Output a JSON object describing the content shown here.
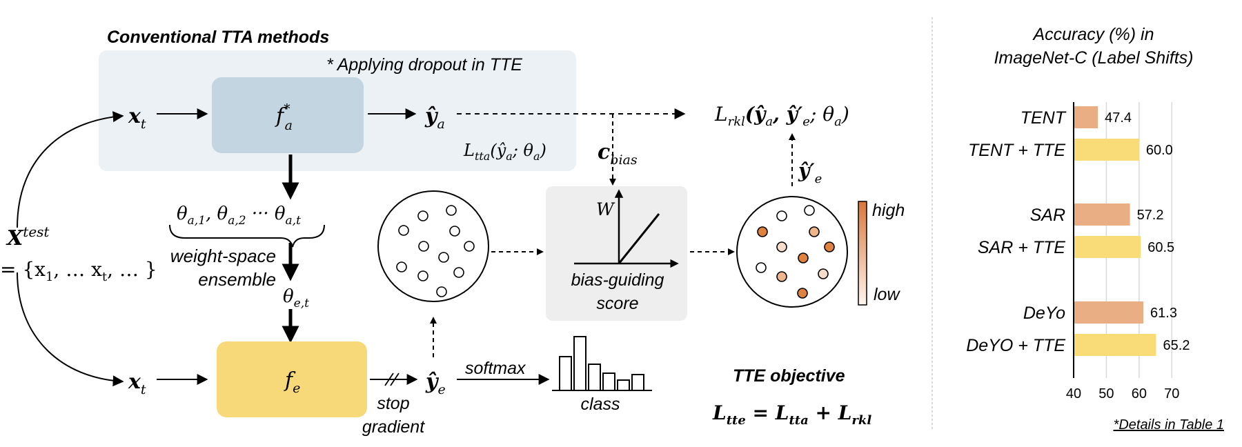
{
  "diagram": {
    "conventional_title": "Conventional TTA methods",
    "dropout_note": "* Applying dropout in TTE",
    "x_t_top": "x",
    "x_t_sub": "t",
    "f_a": "f",
    "f_a_sup": "*",
    "f_a_sub": "a",
    "y_a": "ŷ",
    "y_a_sub": "a",
    "l_tta": "L",
    "l_tta_sub": "tta",
    "l_tta_args": "(ŷ",
    "l_tta_args_sub": "a",
    "l_tta_args_tail": "; θ",
    "l_tta_args_tail_sub": "a",
    "l_tta_close": ")",
    "c_bias": "c",
    "c_bias_sub": "bias",
    "l_rkl": "L",
    "l_rkl_sub": "rkl",
    "l_rkl_args": "(ŷ",
    "l_rkl_a_sub": "a",
    "l_rkl_mid": ", ŷ′",
    "l_rkl_e_sub": "e",
    "l_rkl_tail": "; θ",
    "l_rkl_theta_sub": "a",
    "l_rkl_close": ")",
    "y_e_prime": "ŷ′",
    "y_e_prime_sub": "e",
    "theta_list": "θ",
    "theta_1_sub": "a,1",
    "theta_2_sub": "a,2",
    "theta_t_sub": "a,t",
    "theta_sep_1": ", θ",
    "theta_sep_2": " ··· θ",
    "weight_space": "weight-space",
    "ensemble": "ensemble",
    "theta_e": "θ",
    "theta_e_sub": "e,t",
    "x_test": "X",
    "x_test_sup": "test",
    "x_set": "= {x",
    "x_set_sub1": "1",
    "x_set_mid": ", … x",
    "x_set_sub2": "t",
    "x_set_tail": ", … }",
    "x_t_bottom": "x",
    "x_t_bottom_sub": "t",
    "f_e": "f",
    "f_e_sub": "e",
    "y_e": "ŷ",
    "y_e_sub": "e",
    "stop": "stop",
    "gradient": "gradient",
    "softmax": "softmax",
    "class": "class",
    "axis_w": "W",
    "bias_line1": "bias-guiding",
    "bias_line2": "score",
    "high": "high",
    "low": "low",
    "tte_objective": "TTE objective",
    "tte_l": "L",
    "tte_l_sub": "tte",
    "tte_eq": " = L",
    "tte_l2_sub": "tta",
    "tte_plus": " + L",
    "tte_l3_sub": "rkl"
  },
  "chart_data": {
    "type": "bar",
    "orientation": "horizontal",
    "title": "Accuracy (%) in ImageNet-C (Label Shifts)",
    "title_line1": "Accuracy (%) in",
    "title_line2": "ImageNet-C (Label Shifts)",
    "categories": [
      "TENT",
      "TENT + TTE",
      "SAR",
      "SAR + TTE",
      "DeYo",
      "DeYO + TTE"
    ],
    "values": [
      47.4,
      60.0,
      57.2,
      60.5,
      61.3,
      65.2
    ],
    "value_labels": [
      "47.4",
      "60.0",
      "57.2",
      "60.5",
      "61.3",
      "65.2"
    ],
    "bar_colors": [
      "#E9AE83",
      "#F9DC78",
      "#E9AE83",
      "#F9DC78",
      "#E9AE83",
      "#F9DC78"
    ],
    "xlim": [
      40,
      75
    ],
    "xticks": [
      "40",
      "50",
      "60",
      "70"
    ],
    "grid": true,
    "footnote": "*Details in Table 1"
  },
  "colors": {
    "conventional_bg": "#ECF1F5",
    "f_a_box": "#C2D5E0",
    "f_e_box": "#F8D97A",
    "bias_box": "#EEEEEE",
    "orange_dark": "#E0823F",
    "orange_mid": "#EFB58C",
    "orange_light": "#F6DCCB"
  }
}
